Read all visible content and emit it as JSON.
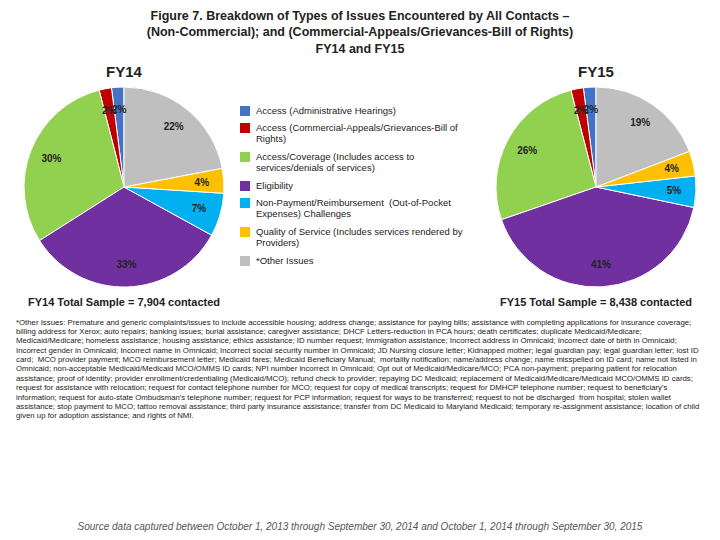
{
  "title": "Figure 7. Breakdown of Types of Issues Encountered by All Contacts –\n(Non-Commercial); and (Commercial-Appeals/Grievances-Bill of Rights)\nFY14 and FY15",
  "annotations": [
    "*Other Issues: Premature and generic complaints/issues to include accessible housing; address change; assistance for paying bills; assistance with completing applications for insurance coverage; billing address for Xerox; auto repairs; banking issues; burial assistance; caregiver assistance; DHCF Letters-reduction in PCA hours; death certificates; duplicate Medicaid/Medicare; Medicaid/Medicare; homeless assistance; housing assistance; ethics assistance; ID number request; Immigration assistance; Incorrect address in Omnicaid; Incorrect date of birth in Omnicaid; Incorrect gender in Omnicaid; Incorrect name in Omnicaid; Incorrect social security number in Omnicaid; JD Nursing closure letter; Kidnapped mother; legal guardian pay; legal guardian letter; lost ID card;  MCO provider payment; MCO reimbursement letter; Medicaid fares; Medicaid Beneficiary Manual;  mortality notification; name/address change; name misspelled on ID card; name not listed in Omnicaid; non-acceptable Medicaid/Medicaid MCO/OMMS ID cards; NPI number incorrect in Omnicaid; Opt out of Medicaid/Medicare/MCO; PCA non-payment; preparing patient for relocation assistance; proof of identity; provider enrollment/credentialing (Medicaid/MCO); refund check to provider; repaying DC Medicaid; replacement of Medicaid/Medicare/Medicaid MCO/OMMS ID cards; request for assistance with relocation; request for contact telephone number for MCO; request for copy of medical transcripts; request for DMHCP telephone number; request to beneficiary's information; request for auto-state Ombudsman's telephone number; request for PCP information; request for ways to be transferred; request to not be discharged  from hospital; stolen wallet assistance; stop payment to MCO; tattoo removal assistance; third party insurance assistance; transfer from DC Medicaid to Maryland Medicaid; temporary re-assignment assistance; location of child given up for adoption assistance; and rights of NMI.",
    "Source data captured between October 1, 2013 through September 30, 2014 and October 1, 2014 through September 30, 2015"
  ],
  "chart_data": [
    {
      "type": "pie",
      "title": "FY14",
      "categories": [
        "Access (Administrative Hearings)",
        "Access (Commercial-Appeals/Grievances-Bill of Rights)",
        "Access/Coverage (Includes access to\nservices/denials of services)",
        "Eligibility",
        "Non-Payment/Reimbursement  (Out-of-Pocket\nExpenses) Challenges",
        "Quality of Service (Includes services rendered by\nProviders)",
        "*Other Issues"
      ],
      "values": [
        2,
        2,
        30,
        33,
        7,
        4,
        22
      ],
      "value_labels": [
        "2%",
        "2%",
        "30%",
        "33%",
        "7%",
        "4%",
        "22%"
      ],
      "data_labels": true,
      "colors": [
        "#4472C4",
        "#C00000",
        "#92D050",
        "#7030A0",
        "#00B0F0",
        "#FFC000",
        "#BFBFBF"
      ],
      "legend": "right",
      "annotations": [
        "FY14 Total Sample = 7,904 contacted"
      ]
    },
    {
      "type": "pie",
      "title": "FY15",
      "categories": [
        "Access (Administrative Hearings)",
        "Access (Commercial-Appeals/Grievances-Bill of Rights)",
        "Access/Coverage (Includes access to\nservices/denials of services)",
        "Eligibility",
        "Non-Payment/Reimbursement  (Out-of-Pocket\nExpenses) Challenges",
        "Quality of Service (Includes services rendered by\nProviders)",
        "*Other Issues"
      ],
      "values": [
        2,
        2,
        26,
        41,
        5,
        4,
        19
      ],
      "value_labels": [
        "2%",
        "2%",
        "26%",
        "41%",
        "5%",
        "4%",
        "19%"
      ],
      "data_labels": true,
      "colors": [
        "#4472C4",
        "#C00000",
        "#92D050",
        "#7030A0",
        "#00B0F0",
        "#FFC000",
        "#BFBFBF"
      ],
      "annotations": [
        "FY15 Total Sample = 8,438 contacted"
      ]
    }
  ]
}
